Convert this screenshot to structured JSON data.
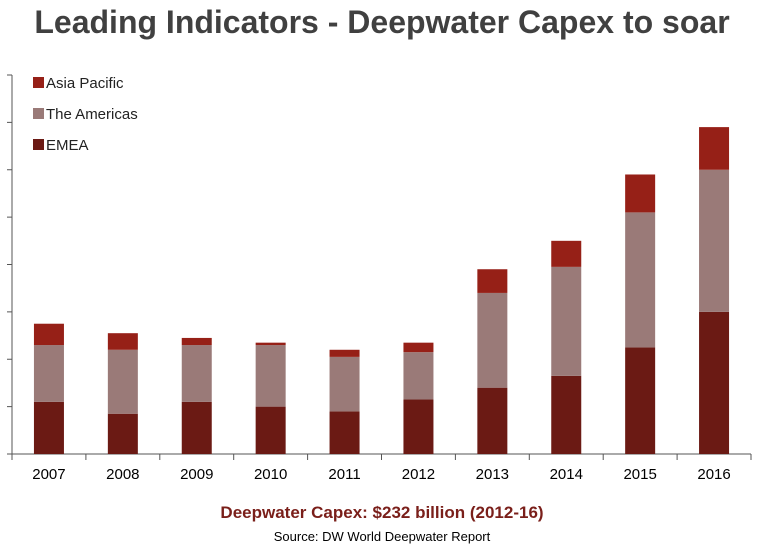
{
  "page": {
    "title": "Leading Indicators - Deepwater Capex to soar",
    "subtitle": "Deepwater Capex: $232 billion (2012-16)",
    "source": "Source: DW World Deepwater Report"
  },
  "chart_data": {
    "type": "bar",
    "stacked": true,
    "title": "Leading Indicators - Deepwater Capex to soar",
    "xlabel": "",
    "ylabel": "",
    "y_tick_labels_shown": false,
    "ylim": [
      0,
      16
    ],
    "grid": false,
    "legend_position": "top-left",
    "categories": [
      "2007",
      "2008",
      "2009",
      "2010",
      "2011",
      "2012",
      "2013",
      "2014",
      "2015",
      "2016"
    ],
    "series": [
      {
        "name": "EMEA",
        "color": "#6b1a14",
        "values": [
          2.2,
          1.7,
          2.2,
          2.0,
          1.8,
          2.3,
          2.8,
          3.3,
          4.5,
          6.0
        ]
      },
      {
        "name": "The Americas",
        "color": "#9a7a78",
        "values": [
          2.4,
          2.7,
          2.4,
          2.6,
          2.3,
          2.0,
          4.0,
          4.6,
          5.7,
          6.0
        ]
      },
      {
        "name": "Asia Pacific",
        "color": "#962017",
        "values": [
          0.9,
          0.7,
          0.3,
          0.1,
          0.3,
          0.4,
          1.0,
          1.1,
          1.6,
          1.8
        ]
      }
    ],
    "legend_order": [
      "Asia Pacific",
      "The Americas",
      "EMEA"
    ]
  }
}
